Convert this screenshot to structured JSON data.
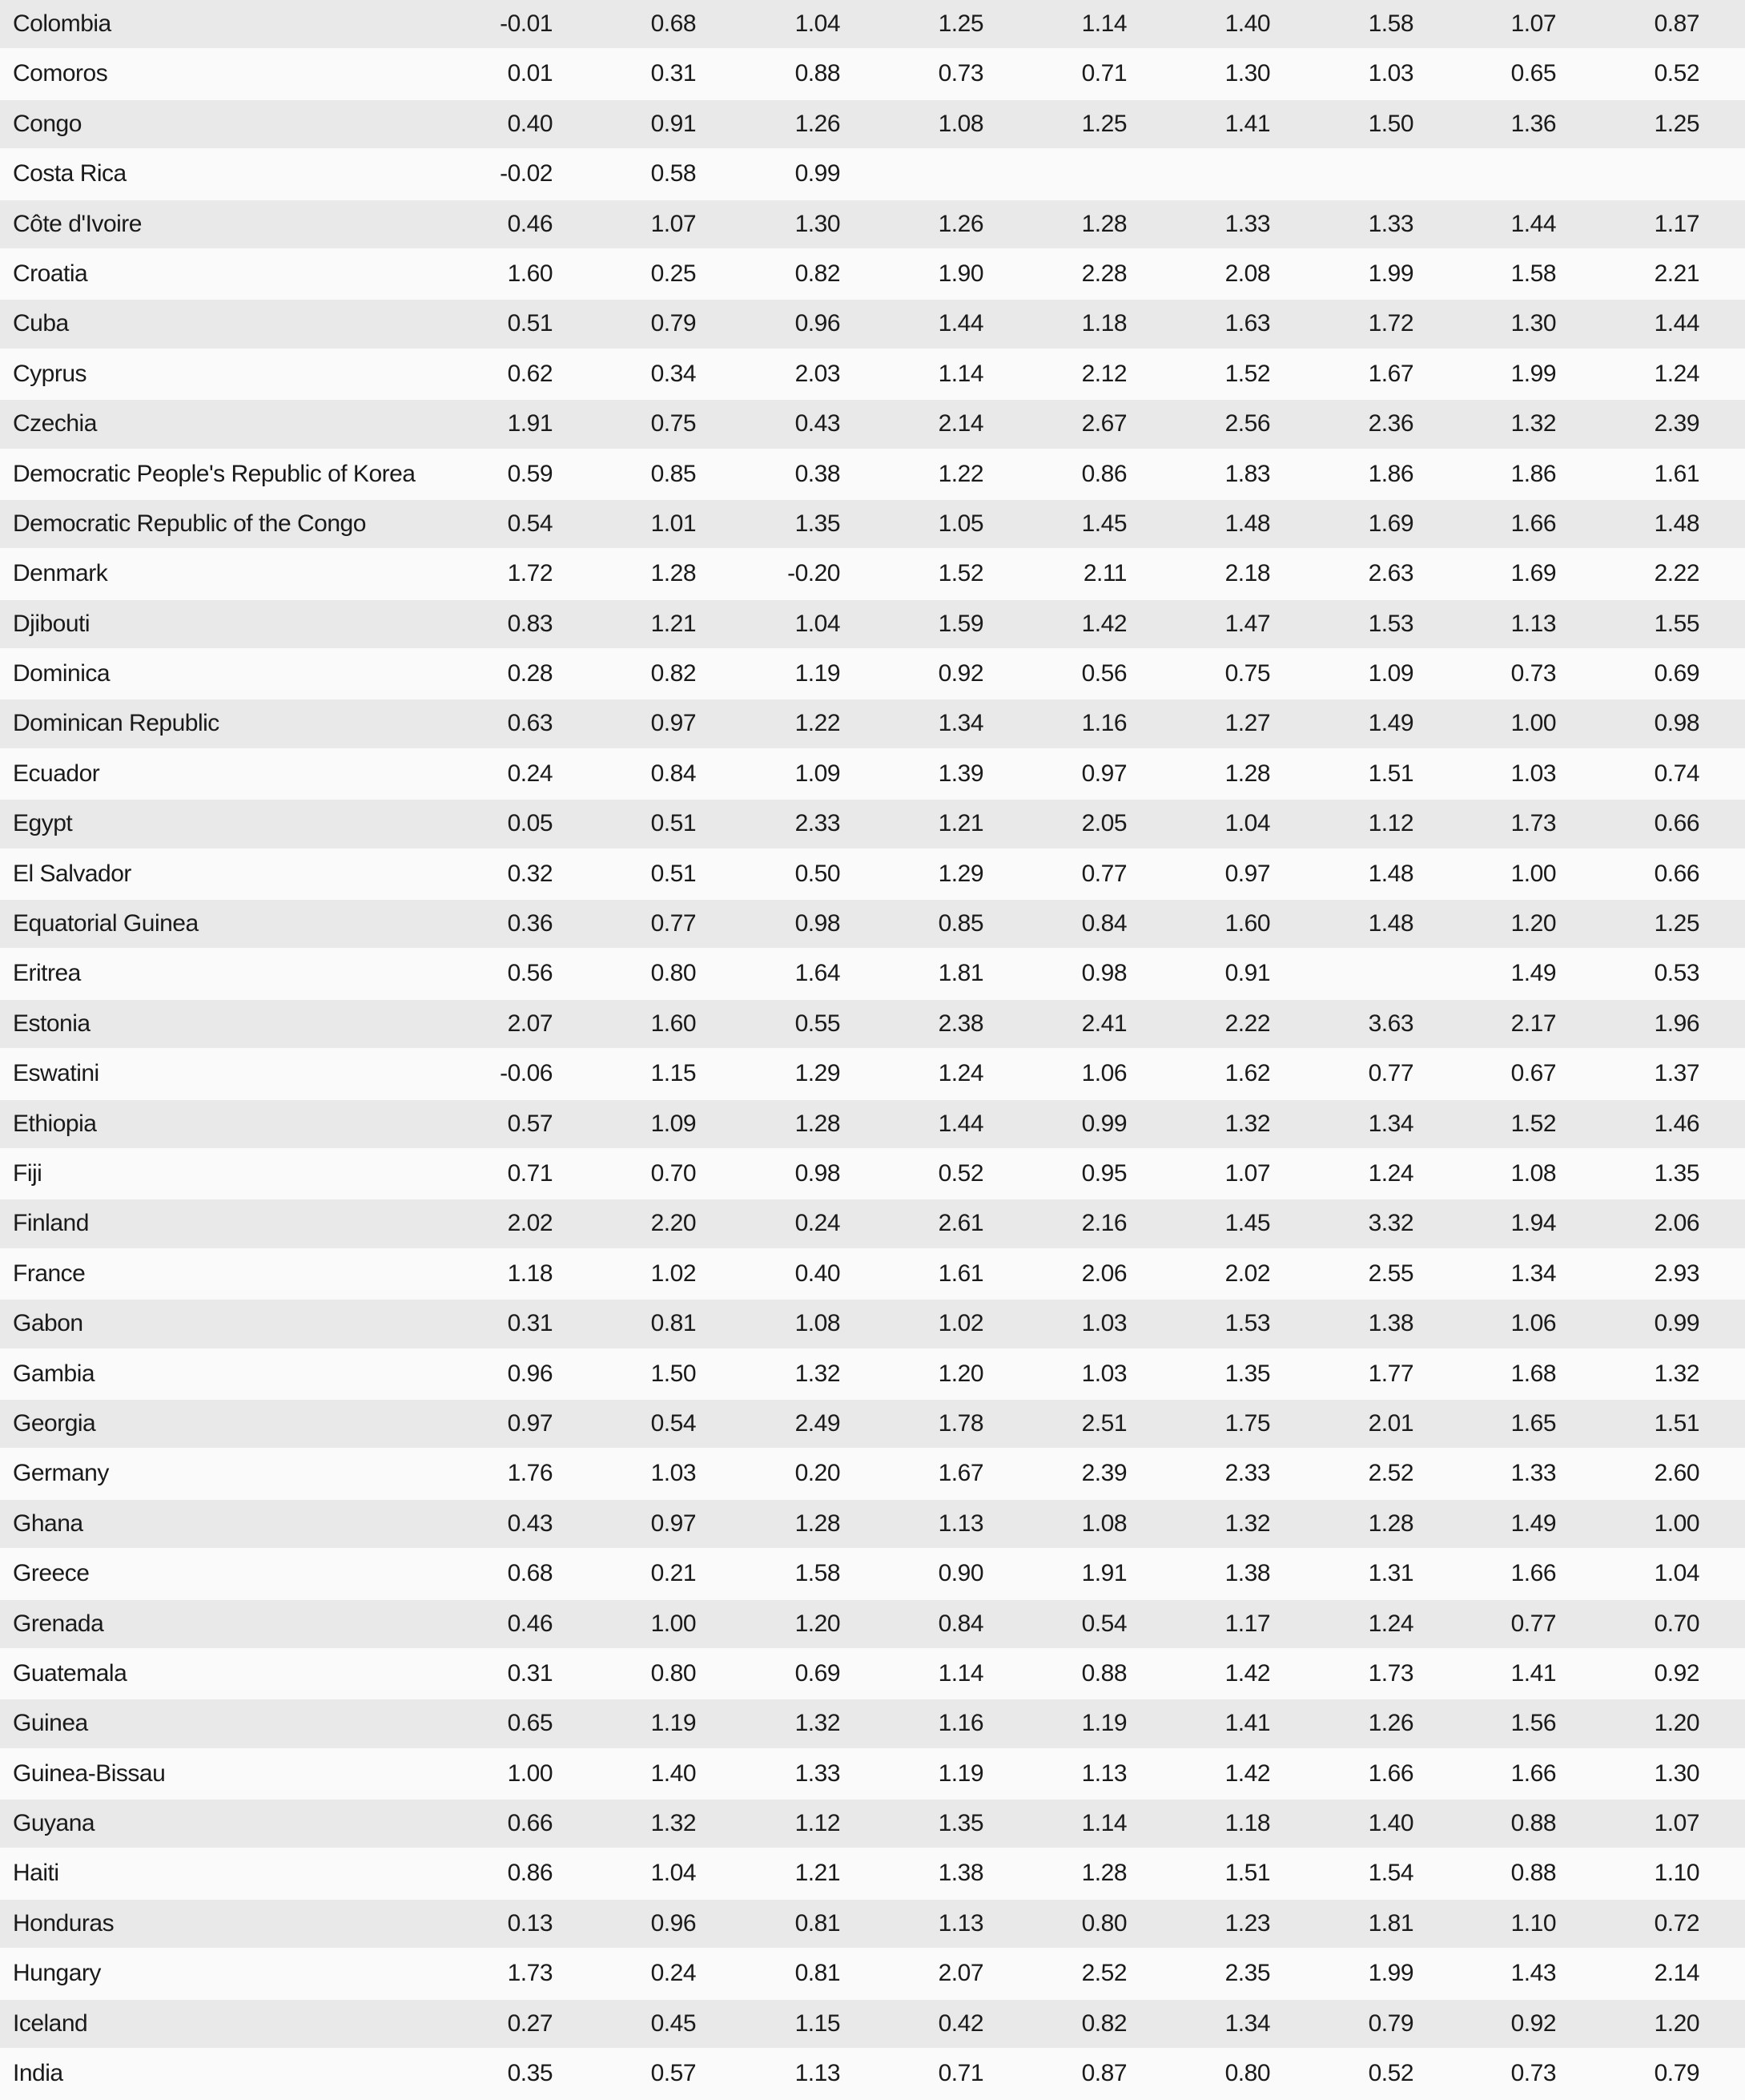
{
  "table": {
    "rows": [
      {
        "name": "Colombia",
        "values": [
          "-0.01",
          "0.68",
          "1.04",
          "1.25",
          "1.14",
          "1.40",
          "1.58",
          "1.07",
          "0.87"
        ]
      },
      {
        "name": "Comoros",
        "values": [
          "0.01",
          "0.31",
          "0.88",
          "0.73",
          "0.71",
          "1.30",
          "1.03",
          "0.65",
          "0.52"
        ]
      },
      {
        "name": "Congo",
        "values": [
          "0.40",
          "0.91",
          "1.26",
          "1.08",
          "1.25",
          "1.41",
          "1.50",
          "1.36",
          "1.25"
        ]
      },
      {
        "name": "Costa Rica",
        "values": [
          "-0.02",
          "0.58",
          "0.99",
          "",
          "",
          "",
          "",
          "",
          ""
        ]
      },
      {
        "name": "Côte d'Ivoire",
        "values": [
          "0.46",
          "1.07",
          "1.30",
          "1.26",
          "1.28",
          "1.33",
          "1.33",
          "1.44",
          "1.17"
        ]
      },
      {
        "name": "Croatia",
        "values": [
          "1.60",
          "0.25",
          "0.82",
          "1.90",
          "2.28",
          "2.08",
          "1.99",
          "1.58",
          "2.21"
        ]
      },
      {
        "name": "Cuba",
        "values": [
          "0.51",
          "0.79",
          "0.96",
          "1.44",
          "1.18",
          "1.63",
          "1.72",
          "1.30",
          "1.44"
        ]
      },
      {
        "name": "Cyprus",
        "values": [
          "0.62",
          "0.34",
          "2.03",
          "1.14",
          "2.12",
          "1.52",
          "1.67",
          "1.99",
          "1.24"
        ]
      },
      {
        "name": "Czechia",
        "values": [
          "1.91",
          "0.75",
          "0.43",
          "2.14",
          "2.67",
          "2.56",
          "2.36",
          "1.32",
          "2.39"
        ]
      },
      {
        "name": "Democratic People's Republic of Korea",
        "values": [
          "0.59",
          "0.85",
          "0.38",
          "1.22",
          "0.86",
          "1.83",
          "1.86",
          "1.86",
          "1.61"
        ]
      },
      {
        "name": "Democratic Republic of the Congo",
        "values": [
          "0.54",
          "1.01",
          "1.35",
          "1.05",
          "1.45",
          "1.48",
          "1.69",
          "1.66",
          "1.48"
        ]
      },
      {
        "name": "Denmark",
        "values": [
          "1.72",
          "1.28",
          "-0.20",
          "1.52",
          "2.11",
          "2.18",
          "2.63",
          "1.69",
          "2.22"
        ]
      },
      {
        "name": "Djibouti",
        "values": [
          "0.83",
          "1.21",
          "1.04",
          "1.59",
          "1.42",
          "1.47",
          "1.53",
          "1.13",
          "1.55"
        ]
      },
      {
        "name": "Dominica",
        "values": [
          "0.28",
          "0.82",
          "1.19",
          "0.92",
          "0.56",
          "0.75",
          "1.09",
          "0.73",
          "0.69"
        ]
      },
      {
        "name": "Dominican Republic",
        "values": [
          "0.63",
          "0.97",
          "1.22",
          "1.34",
          "1.16",
          "1.27",
          "1.49",
          "1.00",
          "0.98"
        ]
      },
      {
        "name": "Ecuador",
        "values": [
          "0.24",
          "0.84",
          "1.09",
          "1.39",
          "0.97",
          "1.28",
          "1.51",
          "1.03",
          "0.74"
        ]
      },
      {
        "name": "Egypt",
        "values": [
          "0.05",
          "0.51",
          "2.33",
          "1.21",
          "2.05",
          "1.04",
          "1.12",
          "1.73",
          "0.66"
        ]
      },
      {
        "name": "El Salvador",
        "values": [
          "0.32",
          "0.51",
          "0.50",
          "1.29",
          "0.77",
          "0.97",
          "1.48",
          "1.00",
          "0.66"
        ]
      },
      {
        "name": "Equatorial Guinea",
        "values": [
          "0.36",
          "0.77",
          "0.98",
          "0.85",
          "0.84",
          "1.60",
          "1.48",
          "1.20",
          "1.25"
        ]
      },
      {
        "name": "Eritrea",
        "values": [
          "0.56",
          "0.80",
          "1.64",
          "1.81",
          "0.98",
          "0.91",
          "",
          "1.49",
          "0.53"
        ]
      },
      {
        "name": "Estonia",
        "values": [
          "2.07",
          "1.60",
          "0.55",
          "2.38",
          "2.41",
          "2.22",
          "3.63",
          "2.17",
          "1.96"
        ]
      },
      {
        "name": "Eswatini",
        "values": [
          "-0.06",
          "1.15",
          "1.29",
          "1.24",
          "1.06",
          "1.62",
          "0.77",
          "0.67",
          "1.37"
        ]
      },
      {
        "name": "Ethiopia",
        "values": [
          "0.57",
          "1.09",
          "1.28",
          "1.44",
          "0.99",
          "1.32",
          "1.34",
          "1.52",
          "1.46"
        ]
      },
      {
        "name": "Fiji",
        "values": [
          "0.71",
          "0.70",
          "0.98",
          "0.52",
          "0.95",
          "1.07",
          "1.24",
          "1.08",
          "1.35"
        ]
      },
      {
        "name": "Finland",
        "values": [
          "2.02",
          "2.20",
          "0.24",
          "2.61",
          "2.16",
          "1.45",
          "3.32",
          "1.94",
          "2.06"
        ]
      },
      {
        "name": "France",
        "values": [
          "1.18",
          "1.02",
          "0.40",
          "1.61",
          "2.06",
          "2.02",
          "2.55",
          "1.34",
          "2.93"
        ]
      },
      {
        "name": "Gabon",
        "values": [
          "0.31",
          "0.81",
          "1.08",
          "1.02",
          "1.03",
          "1.53",
          "1.38",
          "1.06",
          "0.99"
        ]
      },
      {
        "name": "Gambia",
        "values": [
          "0.96",
          "1.50",
          "1.32",
          "1.20",
          "1.03",
          "1.35",
          "1.77",
          "1.68",
          "1.32"
        ]
      },
      {
        "name": "Georgia",
        "values": [
          "0.97",
          "0.54",
          "2.49",
          "1.78",
          "2.51",
          "1.75",
          "2.01",
          "1.65",
          "1.51"
        ]
      },
      {
        "name": "Germany",
        "values": [
          "1.76",
          "1.03",
          "0.20",
          "1.67",
          "2.39",
          "2.33",
          "2.52",
          "1.33",
          "2.60"
        ]
      },
      {
        "name": "Ghana",
        "values": [
          "0.43",
          "0.97",
          "1.28",
          "1.13",
          "1.08",
          "1.32",
          "1.28",
          "1.49",
          "1.00"
        ]
      },
      {
        "name": "Greece",
        "values": [
          "0.68",
          "0.21",
          "1.58",
          "0.90",
          "1.91",
          "1.38",
          "1.31",
          "1.66",
          "1.04"
        ]
      },
      {
        "name": "Grenada",
        "values": [
          "0.46",
          "1.00",
          "1.20",
          "0.84",
          "0.54",
          "1.17",
          "1.24",
          "0.77",
          "0.70"
        ]
      },
      {
        "name": "Guatemala",
        "values": [
          "0.31",
          "0.80",
          "0.69",
          "1.14",
          "0.88",
          "1.42",
          "1.73",
          "1.41",
          "0.92"
        ]
      },
      {
        "name": "Guinea",
        "values": [
          "0.65",
          "1.19",
          "1.32",
          "1.16",
          "1.19",
          "1.41",
          "1.26",
          "1.56",
          "1.20"
        ]
      },
      {
        "name": "Guinea-Bissau",
        "values": [
          "1.00",
          "1.40",
          "1.33",
          "1.19",
          "1.13",
          "1.42",
          "1.66",
          "1.66",
          "1.30"
        ]
      },
      {
        "name": "Guyana",
        "values": [
          "0.66",
          "1.32",
          "1.12",
          "1.35",
          "1.14",
          "1.18",
          "1.40",
          "0.88",
          "1.07"
        ]
      },
      {
        "name": "Haiti",
        "values": [
          "0.86",
          "1.04",
          "1.21",
          "1.38",
          "1.28",
          "1.51",
          "1.54",
          "0.88",
          "1.10"
        ]
      },
      {
        "name": "Honduras",
        "values": [
          "0.13",
          "0.96",
          "0.81",
          "1.13",
          "0.80",
          "1.23",
          "1.81",
          "1.10",
          "0.72"
        ]
      },
      {
        "name": "Hungary",
        "values": [
          "1.73",
          "0.24",
          "0.81",
          "2.07",
          "2.52",
          "2.35",
          "1.99",
          "1.43",
          "2.14"
        ]
      },
      {
        "name": "Iceland",
        "values": [
          "0.27",
          "0.45",
          "1.15",
          "0.42",
          "0.82",
          "1.34",
          "0.79",
          "0.92",
          "1.20"
        ]
      },
      {
        "name": "India",
        "values": [
          "0.35",
          "0.57",
          "1.13",
          "0.71",
          "0.87",
          "0.80",
          "0.52",
          "0.73",
          "0.79"
        ]
      }
    ]
  }
}
